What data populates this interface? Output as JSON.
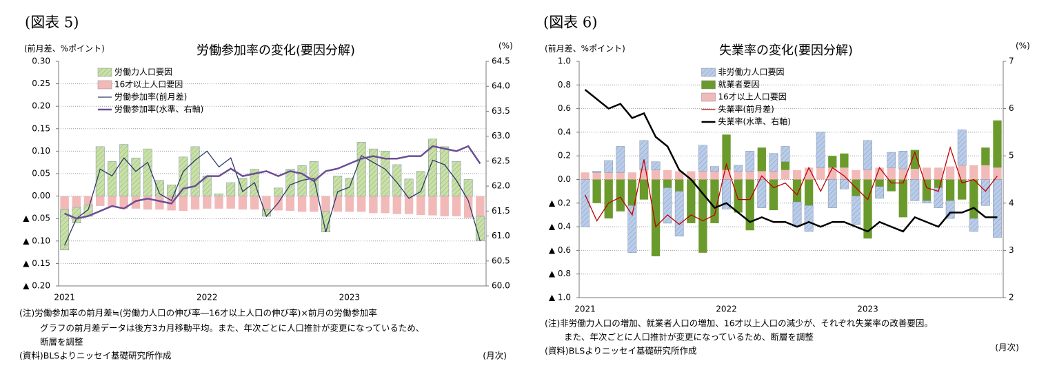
{
  "chart_data": [
    {
      "type": "bar",
      "figure_label": "(図表 5)",
      "title": "労働参加率の変化(要因分解)",
      "y_label": "(前月差、%ポイント)",
      "y2_label": "(%)",
      "notes": [
        "(注)労働参加率の前月差≒(労働力人口の伸び率―16才以上人口の伸び率)×前月の労働参加率",
        "グラフの前月差データは後方3カ月移動平均。また、年次ごとに人口推計が変更になっているため、",
        "断層を調整"
      ],
      "source": "(資料)BLSよりニッセイ基礎研究所作成",
      "x_unit": "(月次)",
      "categories": [
        "2021",
        null,
        null,
        null,
        null,
        null,
        null,
        null,
        null,
        null,
        null,
        null,
        "2022",
        null,
        null,
        null,
        null,
        null,
        null,
        null,
        null,
        null,
        null,
        null,
        "2023",
        null,
        null,
        null,
        null,
        null,
        null,
        null,
        null,
        null,
        null,
        null
      ],
      "series": [
        {
          "name": "労働力人口要因",
          "kind": "bar",
          "color": "#c9e2a2",
          "hatch": true,
          "values": [
            -0.09,
            -0.035,
            -0.025,
            0.11,
            0.077,
            0.115,
            0.085,
            0.105,
            0.035,
            0.025,
            0.087,
            0.11,
            0.045,
            0.005,
            0.03,
            0.04,
            0.06,
            -0.015,
            0.018,
            0.06,
            0.068,
            0.077,
            -0.045,
            0.045,
            0.04,
            0.12,
            0.105,
            0.1,
            0.07,
            0.038,
            0.055,
            0.127,
            0.11,
            0.077,
            0.037,
            -0.055
          ]
        },
        {
          "name": "16才以上人口要因",
          "kind": "bar",
          "color": "#f2b9b9",
          "values": [
            -0.03,
            -0.025,
            -0.02,
            -0.022,
            -0.025,
            -0.028,
            -0.028,
            -0.03,
            -0.03,
            -0.032,
            -0.033,
            -0.03,
            -0.028,
            -0.028,
            -0.028,
            -0.03,
            -0.03,
            -0.03,
            -0.032,
            -0.033,
            -0.035,
            -0.035,
            -0.035,
            -0.035,
            -0.035,
            -0.035,
            -0.038,
            -0.038,
            -0.04,
            -0.04,
            -0.042,
            -0.043,
            -0.045,
            -0.045,
            -0.048,
            -0.045
          ]
        },
        {
          "name": "労働参加率(前月差)",
          "kind": "line",
          "color": "#2b3a67",
          "values": [
            -0.11,
            -0.05,
            -0.03,
            0.06,
            0.045,
            0.085,
            0.055,
            0.075,
            0.005,
            -0.01,
            0.055,
            0.08,
            0.1,
            0.065,
            0.085,
            0.01,
            0.03,
            -0.045,
            -0.015,
            0.025,
            0.035,
            0.04,
            -0.08,
            0.01,
            0.02,
            0.09,
            0.075,
            0.06,
            0.03,
            -0.005,
            0.01,
            0.08,
            0.07,
            0.035,
            -0.01,
            -0.1
          ]
        },
        {
          "name": "労働参加率(水準、右軸)",
          "kind": "line",
          "axis": "y2",
          "color": "#6b4f94",
          "values": [
            61.45,
            61.35,
            61.4,
            61.5,
            61.6,
            61.55,
            61.7,
            61.75,
            61.7,
            61.65,
            61.95,
            62.0,
            62.2,
            62.2,
            62.35,
            62.2,
            62.25,
            62.3,
            62.2,
            62.3,
            62.25,
            62.1,
            62.3,
            62.35,
            62.45,
            62.55,
            62.6,
            62.55,
            62.55,
            62.6,
            62.6,
            62.8,
            62.75,
            62.7,
            62.8,
            62.45
          ]
        }
      ],
      "ylim": [
        -0.2,
        0.3
      ],
      "yticks": [
        {
          "value": 0.3,
          "label": "0.30"
        },
        0.25,
        {
          "value": 0.2,
          "label": "0.20"
        },
        0.15,
        {
          "value": 0.1,
          "label": "0.10"
        },
        0.05,
        {
          "value": 0,
          "label": "0.00"
        },
        {
          "value": -0.05,
          "label": "▲ 0.05"
        },
        {
          "value": -0.1,
          "label": "▲ 0.10"
        },
        {
          "value": -0.15,
          "label": "▲ 0.15"
        },
        {
          "value": -0.2,
          "label": "▲ 0.20"
        }
      ],
      "y2lim": [
        60,
        64.5
      ],
      "y2ticks": [
        64.5,
        {
          "value": 64,
          "label": "64.0"
        },
        63.5,
        {
          "value": 63,
          "label": "63.0"
        },
        62.5,
        {
          "value": 62,
          "label": "62.0"
        },
        61.5,
        {
          "value": 61,
          "label": "61.0"
        },
        60.5,
        {
          "value": 60,
          "label": "60.0"
        }
      ],
      "grid": true,
      "legend": "upper left"
    },
    {
      "type": "bar",
      "figure_label": "(図表 6)",
      "title": "失業率の変化(要因分解)",
      "y_label": "(前月差、%ポイント)",
      "y2_label": "(%)",
      "notes": [
        "(注)非労働力人口の増加、就業者人口の増加、16才以上人口の減少が、それぞれ失業率の改善要因。",
        "また、年次ごとに人口推計が変更になっているため、断層を調整"
      ],
      "source": "(資料)BLSよりニッセイ基礎研究所作成",
      "x_unit": "(月次)",
      "categories": [
        "2021",
        null,
        null,
        null,
        null,
        null,
        null,
        null,
        null,
        null,
        null,
        null,
        "2022",
        null,
        null,
        null,
        null,
        null,
        null,
        null,
        null,
        null,
        null,
        null,
        "2023",
        null,
        null,
        null,
        null,
        null,
        null,
        null,
        null,
        null,
        null,
        null
      ],
      "series": [
        {
          "name": "非労働力人口要因",
          "kind": "bar",
          "color": "#b9cdea",
          "hatch": true,
          "values": [
            -0.4,
            0.01,
            0.1,
            0.22,
            -0.4,
            0.25,
            0.07,
            -0.3,
            -0.38,
            0.0,
            0.22,
            0.04,
            -0.25,
            0.05,
            0.17,
            -0.24,
            0.15,
            0.13,
            -0.2,
            -0.22,
            0.3,
            -0.24,
            -0.08,
            -0.24,
            0.25,
            -0.1,
            0.13,
            0.15,
            -0.18,
            -0.02,
            -0.17,
            -0.15,
            0.3,
            -0.11,
            -0.22,
            -0.49
          ]
        },
        {
          "name": "就業者要因",
          "kind": "bar",
          "color": "#6b9a2c",
          "values": [
            0.0,
            -0.2,
            -0.33,
            -0.27,
            -0.22,
            -0.17,
            -0.65,
            -0.07,
            -0.1,
            -0.37,
            -0.62,
            -0.37,
            0.3,
            -0.28,
            -0.43,
            0.2,
            -0.26,
            0.07,
            -0.19,
            -0.22,
            0.0,
            0.1,
            0.12,
            -0.14,
            -0.5,
            -0.06,
            -0.1,
            -0.32,
            0.16,
            -0.18,
            -0.07,
            -0.18,
            -0.17,
            -0.33,
            0.15,
            0.4
          ]
        },
        {
          "name": "16才以上人口要因",
          "kind": "bar",
          "color": "#f2b9b9",
          "values": [
            0.06,
            0.06,
            0.06,
            0.06,
            0.06,
            0.08,
            0.08,
            0.08,
            0.07,
            0.07,
            0.07,
            0.07,
            0.08,
            0.07,
            0.07,
            0.07,
            0.07,
            0.08,
            0.08,
            0.1,
            0.1,
            0.1,
            0.1,
            0.08,
            0.08,
            0.1,
            0.1,
            0.09,
            0.09,
            0.1,
            0.1,
            0.11,
            0.12,
            0.12,
            0.12,
            0.1
          ]
        },
        {
          "name": "失業率(前月差)",
          "kind": "line",
          "color": "#c00000",
          "values": [
            -0.13,
            -0.35,
            -0.2,
            -0.15,
            -0.3,
            0.17,
            -0.4,
            -0.3,
            -0.38,
            -0.3,
            -0.35,
            -0.3,
            0.13,
            -0.17,
            -0.17,
            0.03,
            -0.07,
            -0.03,
            -0.13,
            0.1,
            -0.1,
            0.1,
            0.03,
            -0.07,
            -0.17,
            0.1,
            -0.03,
            -0.03,
            0.23,
            -0.07,
            -0.1,
            0.27,
            -0.03,
            0.0,
            -0.1,
            0.03
          ]
        },
        {
          "name": "失業率(水準、右軸)",
          "kind": "line",
          "axis": "y2",
          "color": "#000000",
          "values": [
            6.4,
            6.2,
            6.0,
            6.1,
            5.8,
            5.9,
            5.4,
            5.2,
            4.7,
            4.5,
            4.2,
            3.9,
            4.0,
            3.8,
            3.6,
            3.7,
            3.6,
            3.6,
            3.5,
            3.6,
            3.5,
            3.6,
            3.6,
            3.5,
            3.4,
            3.6,
            3.5,
            3.4,
            3.7,
            3.6,
            3.5,
            3.8,
            3.8,
            3.9,
            3.7,
            3.7
          ]
        }
      ],
      "ylim": [
        -1,
        1
      ],
      "yticks": [
        {
          "value": 1,
          "label": "1.0"
        },
        0.8,
        0.6,
        0.4,
        0.2,
        {
          "value": 0,
          "label": "0.0"
        },
        {
          "value": -0.2,
          "label": "▲ 0.2"
        },
        {
          "value": -0.4,
          "label": "▲ 0.4"
        },
        {
          "value": -0.6,
          "label": "▲ 0.6"
        },
        {
          "value": -0.8,
          "label": "▲ 0.8"
        },
        {
          "value": -1,
          "label": "▲ 1.0"
        }
      ],
      "y2lim": [
        2,
        7
      ],
      "y2ticks": [
        7,
        6,
        5,
        4,
        3,
        2
      ],
      "grid": true,
      "legend": "upper center"
    }
  ]
}
